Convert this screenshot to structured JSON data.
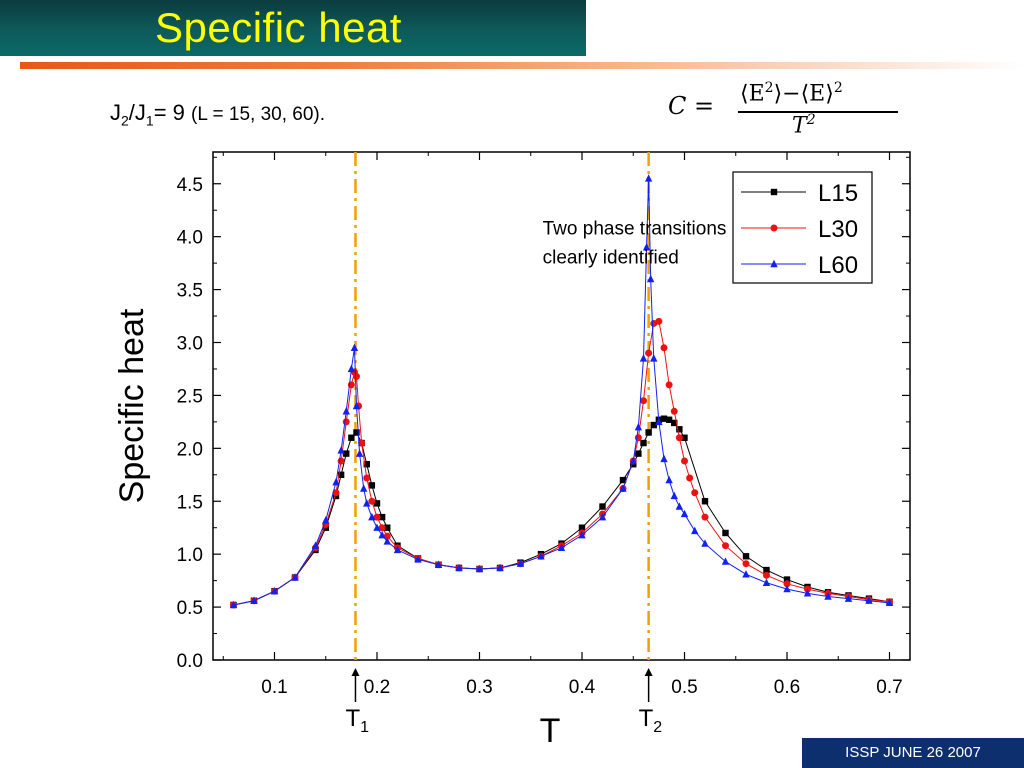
{
  "header": {
    "title": "Specific heat"
  },
  "subtitle": {
    "main": "J2/J1= 9",
    "j_a": "J",
    "sub_a": "2",
    "slash": "/J",
    "sub_b": "1",
    "eq": "= 9 ",
    "params": "(L = 15, 30, 60)."
  },
  "formula": {
    "lhs": "C =",
    "numerator": "⟨E²⟩−⟨E⟩²",
    "num_a": "⟨E",
    "num_sup_a": "2",
    "num_b": "⟩−⟨E⟩",
    "num_sup_b": "2",
    "denominator": "T",
    "den_sup": "2"
  },
  "footer": {
    "text": "ISSP JUNE 26 2007"
  },
  "colors": {
    "title_bar": "#0e5a5a",
    "title_text": "#ffff00",
    "accent": "#e8571a",
    "footer_bg": "#0d2f6e",
    "transition_line": "#f2a000",
    "l15": "#000000",
    "l30": "#ee1111",
    "l60": "#1122ee"
  },
  "chart_data": {
    "type": "line",
    "xlabel": "T",
    "ylabel": "Specific heat",
    "xlim": [
      0.04,
      0.72
    ],
    "ylim": [
      0.0,
      4.8
    ],
    "xticks": [
      "0.1",
      "0.2",
      "0.3",
      "0.4",
      "0.5",
      "0.6",
      "0.7"
    ],
    "yticks": [
      "0.0",
      "0.5",
      "1.0",
      "1.5",
      "2.0",
      "2.5",
      "3.0",
      "3.5",
      "4.0",
      "4.5"
    ],
    "grid": false,
    "legend": "top-right",
    "annotation": {
      "line1": "Two phase transitions",
      "line2": "clearly identified",
      "x": 0.305,
      "y": 4.05
    },
    "transitions": [
      {
        "label": "T",
        "sub": "1",
        "x": 0.179
      },
      {
        "label": "T",
        "sub": "2",
        "x": 0.465
      }
    ],
    "series": [
      {
        "name": "L15",
        "marker": "square",
        "color": "#000000",
        "x": [
          0.06,
          0.08,
          0.1,
          0.12,
          0.14,
          0.15,
          0.16,
          0.165,
          0.17,
          0.175,
          0.18,
          0.185,
          0.19,
          0.195,
          0.2,
          0.205,
          0.21,
          0.22,
          0.24,
          0.26,
          0.28,
          0.3,
          0.32,
          0.34,
          0.36,
          0.38,
          0.4,
          0.42,
          0.44,
          0.45,
          0.455,
          0.46,
          0.465,
          0.47,
          0.475,
          0.48,
          0.485,
          0.49,
          0.495,
          0.5,
          0.52,
          0.54,
          0.56,
          0.58,
          0.6,
          0.62,
          0.64,
          0.66,
          0.68,
          0.7
        ],
        "y": [
          0.52,
          0.56,
          0.65,
          0.78,
          1.04,
          1.25,
          1.55,
          1.75,
          1.95,
          2.1,
          2.15,
          2.05,
          1.85,
          1.65,
          1.48,
          1.35,
          1.25,
          1.08,
          0.96,
          0.9,
          0.87,
          0.86,
          0.87,
          0.92,
          1.0,
          1.1,
          1.25,
          1.45,
          1.7,
          1.85,
          1.95,
          2.05,
          2.15,
          2.22,
          2.27,
          2.28,
          2.27,
          2.24,
          2.18,
          2.1,
          1.5,
          1.2,
          0.98,
          0.85,
          0.76,
          0.69,
          0.64,
          0.61,
          0.58,
          0.55
        ]
      },
      {
        "name": "L30",
        "marker": "circle",
        "color": "#ee1111",
        "x": [
          0.06,
          0.08,
          0.1,
          0.12,
          0.14,
          0.15,
          0.16,
          0.165,
          0.17,
          0.175,
          0.178,
          0.18,
          0.182,
          0.185,
          0.19,
          0.195,
          0.2,
          0.205,
          0.21,
          0.22,
          0.24,
          0.26,
          0.28,
          0.3,
          0.32,
          0.34,
          0.36,
          0.38,
          0.4,
          0.42,
          0.44,
          0.45,
          0.455,
          0.46,
          0.465,
          0.47,
          0.475,
          0.48,
          0.485,
          0.49,
          0.495,
          0.5,
          0.505,
          0.51,
          0.52,
          0.54,
          0.56,
          0.58,
          0.6,
          0.62,
          0.64,
          0.66,
          0.68,
          0.7
        ],
        "y": [
          0.52,
          0.56,
          0.65,
          0.78,
          1.06,
          1.28,
          1.58,
          1.88,
          2.25,
          2.6,
          2.72,
          2.68,
          2.4,
          2.05,
          1.72,
          1.5,
          1.35,
          1.25,
          1.17,
          1.06,
          0.96,
          0.9,
          0.87,
          0.86,
          0.87,
          0.91,
          0.98,
          1.08,
          1.2,
          1.38,
          1.62,
          1.88,
          2.1,
          2.45,
          2.9,
          3.18,
          3.2,
          2.95,
          2.6,
          2.35,
          2.1,
          1.88,
          1.72,
          1.58,
          1.35,
          1.08,
          0.91,
          0.8,
          0.72,
          0.67,
          0.63,
          0.6,
          0.57,
          0.55
        ]
      },
      {
        "name": "L60",
        "marker": "triangle",
        "color": "#1122ee",
        "x": [
          0.06,
          0.08,
          0.1,
          0.12,
          0.14,
          0.15,
          0.16,
          0.165,
          0.17,
          0.175,
          0.178,
          0.18,
          0.183,
          0.187,
          0.19,
          0.195,
          0.2,
          0.205,
          0.21,
          0.22,
          0.24,
          0.26,
          0.28,
          0.3,
          0.32,
          0.34,
          0.36,
          0.38,
          0.4,
          0.42,
          0.44,
          0.45,
          0.455,
          0.46,
          0.463,
          0.465,
          0.467,
          0.47,
          0.475,
          0.48,
          0.485,
          0.49,
          0.495,
          0.5,
          0.51,
          0.52,
          0.54,
          0.56,
          0.58,
          0.6,
          0.62,
          0.64,
          0.66,
          0.68,
          0.7
        ],
        "y": [
          0.52,
          0.56,
          0.65,
          0.78,
          1.08,
          1.32,
          1.68,
          1.98,
          2.35,
          2.75,
          2.95,
          2.4,
          1.95,
          1.62,
          1.48,
          1.35,
          1.25,
          1.18,
          1.12,
          1.04,
          0.95,
          0.9,
          0.87,
          0.86,
          0.87,
          0.91,
          0.98,
          1.06,
          1.18,
          1.35,
          1.62,
          1.88,
          2.2,
          2.85,
          3.9,
          4.55,
          3.6,
          2.85,
          2.25,
          1.9,
          1.7,
          1.55,
          1.45,
          1.38,
          1.22,
          1.1,
          0.93,
          0.81,
          0.73,
          0.67,
          0.63,
          0.6,
          0.58,
          0.56,
          0.54
        ]
      }
    ]
  }
}
